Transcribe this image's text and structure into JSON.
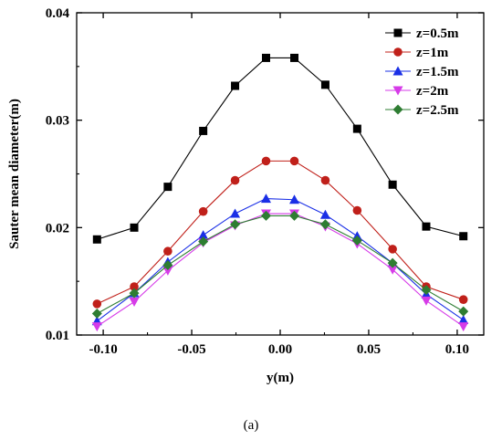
{
  "chart_data": {
    "type": "line",
    "xlabel": "y(m)",
    "ylabel": "Sauter mean diameter(m)",
    "caption": "(a)",
    "xlim": [
      -0.115,
      0.115
    ],
    "ylim": [
      0.01,
      0.04
    ],
    "xticks": [
      -0.1,
      -0.05,
      0.0,
      0.05,
      0.1
    ],
    "xtick_labels": [
      "-0.10",
      "-0.05",
      "0.00",
      "0.05",
      "0.10"
    ],
    "yticks": [
      0.01,
      0.02,
      0.03,
      0.04
    ],
    "ytick_labels": [
      "0.01",
      "0.02",
      "0.03",
      "0.04"
    ],
    "grid": false,
    "legend_position": "top-right",
    "x": [
      -0.1035,
      -0.0825,
      -0.0635,
      -0.0435,
      -0.0255,
      -0.008,
      0.008,
      0.0255,
      0.0435,
      0.0635,
      0.0825,
      0.1035
    ],
    "series": [
      {
        "name": "z=0.5m",
        "color": "#000000",
        "marker": "square",
        "values": [
          0.0189,
          0.02,
          0.0238,
          0.029,
          0.0332,
          0.0358,
          0.0358,
          0.0333,
          0.0292,
          0.024,
          0.0201,
          0.0192
        ]
      },
      {
        "name": "z=1m",
        "color": "#c0201a",
        "marker": "circle",
        "values": [
          0.0129,
          0.0145,
          0.0178,
          0.0215,
          0.0244,
          0.0262,
          0.0262,
          0.0244,
          0.0216,
          0.018,
          0.0145,
          0.0133
        ]
      },
      {
        "name": "z=1.5m",
        "color": "#1a2fe6",
        "marker": "triangle-up",
        "values": [
          0.0113,
          0.0139,
          0.0168,
          0.0193,
          0.0213,
          0.0227,
          0.0226,
          0.0212,
          0.0192,
          0.0167,
          0.0138,
          0.0114
        ]
      },
      {
        "name": "z=2m",
        "color": "#d63be8",
        "marker": "triangle-down",
        "values": [
          0.0108,
          0.0131,
          0.016,
          0.0186,
          0.0202,
          0.0213,
          0.0213,
          0.0201,
          0.0185,
          0.0161,
          0.0132,
          0.0108
        ]
      },
      {
        "name": "z=2.5m",
        "color": "#2e7d32",
        "marker": "diamond",
        "values": [
          0.012,
          0.0139,
          0.0165,
          0.0187,
          0.0203,
          0.0211,
          0.0211,
          0.0203,
          0.0188,
          0.0167,
          0.0142,
          0.0122
        ]
      }
    ]
  }
}
